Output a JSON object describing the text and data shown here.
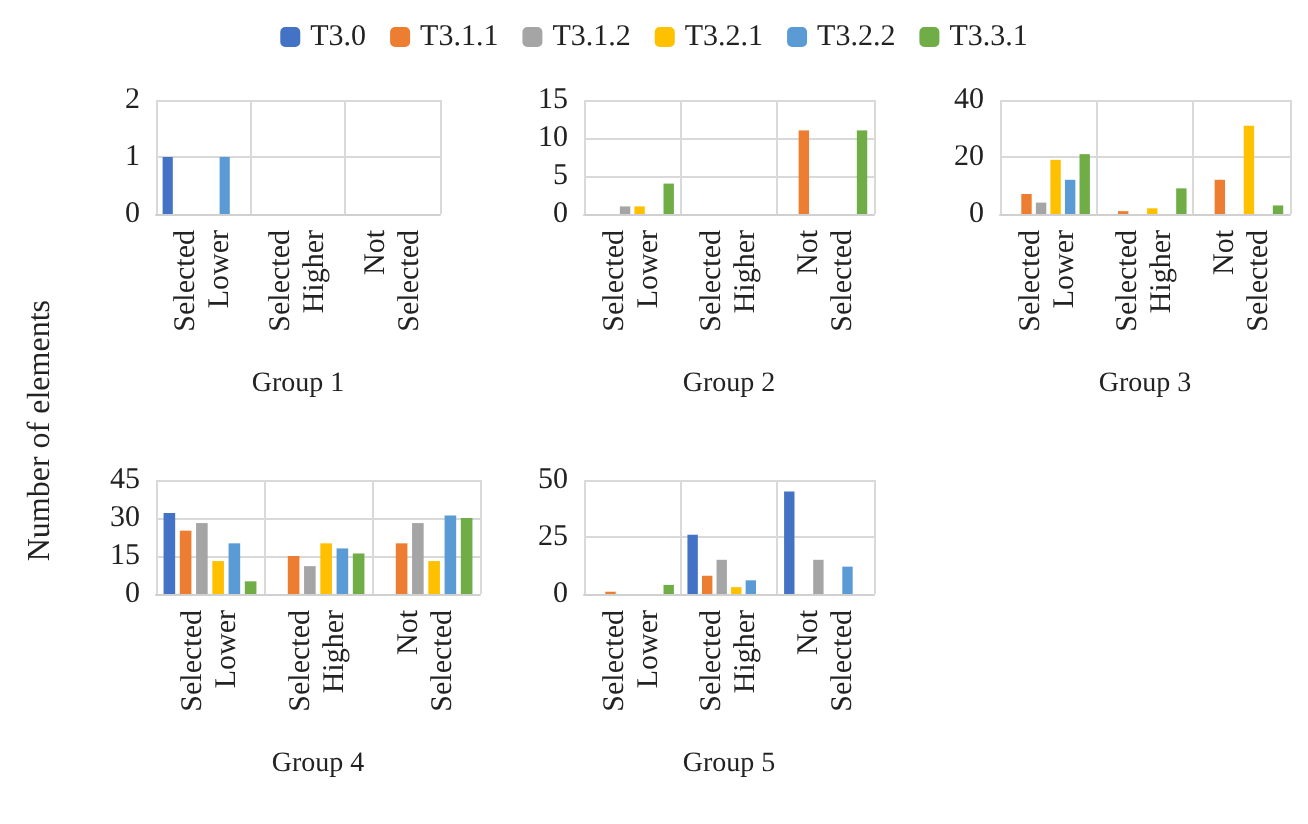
{
  "chart_data": [
    {
      "type": "bar",
      "xlabel": "Group 1",
      "ylabel": "Number of elements",
      "categories": [
        "Selected Lower",
        "Selected Higher",
        "Not Selected"
      ],
      "series": [
        {
          "name": "T3.0",
          "color": "#4472c4",
          "values": [
            1,
            0,
            0
          ]
        },
        {
          "name": "T3.1.1",
          "color": "#ed7d31",
          "values": [
            0,
            0,
            0
          ]
        },
        {
          "name": "T3.1.2",
          "color": "#a5a5a5",
          "values": [
            0,
            0,
            0
          ]
        },
        {
          "name": "T3.2.1",
          "color": "#ffc000",
          "values": [
            0,
            0,
            0
          ]
        },
        {
          "name": "T3.2.2",
          "color": "#5b9bd5",
          "values": [
            1,
            0,
            0
          ]
        },
        {
          "name": "T3.3.1",
          "color": "#70ad47",
          "values": [
            0,
            0,
            0
          ]
        }
      ],
      "ylim": [
        0,
        2
      ],
      "yticks": [
        0,
        1,
        2
      ],
      "grid": true,
      "legend": "top"
    },
    {
      "type": "bar",
      "xlabel": "Group 2",
      "categories": [
        "Selected Lower",
        "Selected Higher",
        "Not Selected"
      ],
      "series": [
        {
          "color": "#4472c4",
          "values": [
            0,
            0,
            0
          ]
        },
        {
          "color": "#ed7d31",
          "values": [
            0,
            0,
            11
          ]
        },
        {
          "color": "#a5a5a5",
          "values": [
            1,
            0,
            0
          ]
        },
        {
          "color": "#ffc000",
          "values": [
            1,
            0,
            0
          ]
        },
        {
          "color": "#5b9bd5",
          "values": [
            0,
            0,
            0
          ]
        },
        {
          "color": "#70ad47",
          "values": [
            4,
            0,
            11
          ]
        }
      ],
      "ylim": [
        0,
        15
      ],
      "yticks": [
        0,
        5,
        10,
        15
      ],
      "grid": true
    },
    {
      "type": "bar",
      "xlabel": "Group 3",
      "categories": [
        "Selected Lower",
        "Selected Higher",
        "Not Selected"
      ],
      "series": [
        {
          "color": "#4472c4",
          "values": [
            0,
            0,
            0
          ]
        },
        {
          "color": "#ed7d31",
          "values": [
            7,
            1,
            12
          ]
        },
        {
          "color": "#a5a5a5",
          "values": [
            4,
            0,
            0
          ]
        },
        {
          "color": "#ffc000",
          "values": [
            19,
            2,
            31
          ]
        },
        {
          "color": "#5b9bd5",
          "values": [
            12,
            0,
            0
          ]
        },
        {
          "color": "#70ad47",
          "values": [
            21,
            9,
            3
          ]
        }
      ],
      "ylim": [
        0,
        40
      ],
      "yticks": [
        0,
        20,
        40
      ],
      "grid": true
    },
    {
      "type": "bar",
      "xlabel": "Group 4",
      "categories": [
        "Selected Lower",
        "Selected Higher",
        "Not Selected"
      ],
      "series": [
        {
          "color": "#4472c4",
          "values": [
            32,
            0,
            0
          ]
        },
        {
          "color": "#ed7d31",
          "values": [
            25,
            15,
            20
          ]
        },
        {
          "color": "#a5a5a5",
          "values": [
            28,
            11,
            28
          ]
        },
        {
          "color": "#ffc000",
          "values": [
            13,
            20,
            13
          ]
        },
        {
          "color": "#5b9bd5",
          "values": [
            20,
            18,
            31
          ]
        },
        {
          "color": "#70ad47",
          "values": [
            5,
            16,
            30
          ]
        }
      ],
      "ylim": [
        0,
        45
      ],
      "yticks": [
        0,
        15,
        30,
        45
      ],
      "grid": true
    },
    {
      "type": "bar",
      "xlabel": "Group 5",
      "categories": [
        "Selected Lower",
        "Selected Higher",
        "Not Selected"
      ],
      "series": [
        {
          "color": "#4472c4",
          "values": [
            0,
            26,
            45
          ]
        },
        {
          "color": "#ed7d31",
          "values": [
            1,
            8,
            0
          ]
        },
        {
          "color": "#a5a5a5",
          "values": [
            0,
            15,
            15
          ]
        },
        {
          "color": "#ffc000",
          "values": [
            0,
            3,
            0
          ]
        },
        {
          "color": "#5b9bd5",
          "values": [
            0,
            6,
            12
          ]
        },
        {
          "color": "#70ad47",
          "values": [
            4,
            0,
            0
          ]
        }
      ],
      "ylim": [
        0,
        50
      ],
      "yticks": [
        0,
        25,
        50
      ],
      "grid": true
    }
  ]
}
